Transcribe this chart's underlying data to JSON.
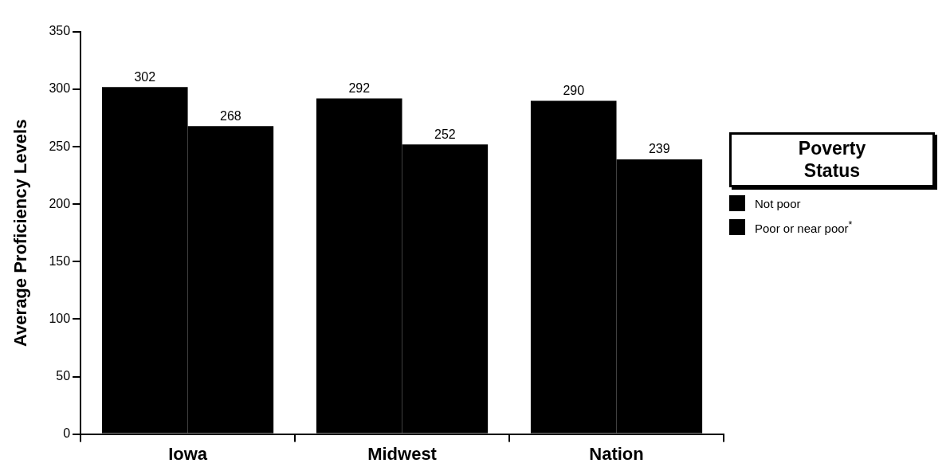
{
  "chart_data": {
    "type": "bar",
    "categories": [
      "Iowa",
      "Midwest",
      "Nation"
    ],
    "ylabel": "Average Proficiency Levels",
    "legend_title": "Poverty Status",
    "series": [
      {
        "name": "Not poor",
        "color": "#000000",
        "values": [
          302,
          292,
          290
        ]
      },
      {
        "name": "Poor or near poor$^{*}$",
        "color": "#000000",
        "values": [
          268,
          252,
          239
        ]
      }
    ],
    "ylim": [
      0,
      350
    ],
    "yticks": [
      0,
      50,
      100,
      150,
      200,
      250,
      300,
      350
    ],
    "data_labels": true,
    "grid": false,
    "legend": "right"
  }
}
